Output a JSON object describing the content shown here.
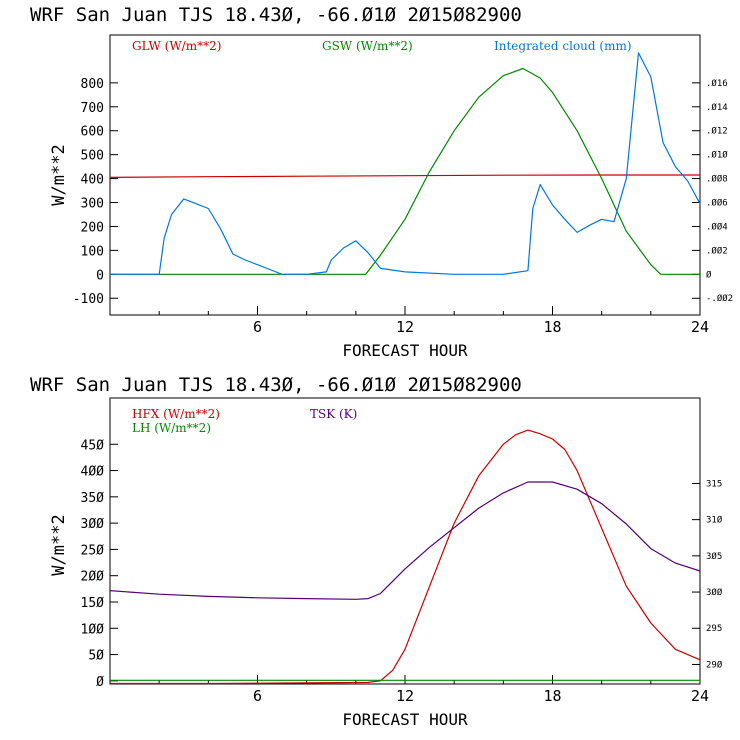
{
  "chart_data": [
    {
      "type": "line",
      "title": "WRF  San Juan TJS  18.43Ø, -66.Ø1Ø  2Ø15Ø82900",
      "xlabel": "FORECAST HOUR",
      "ylabel": "W/m**2",
      "xlim": [
        0,
        24
      ],
      "ylim": [
        -170,
        1000
      ],
      "xticks": [
        {
          "v": 6,
          "label": "6"
        },
        {
          "v": 12,
          "label": "12"
        },
        {
          "v": 18,
          "label": "18"
        },
        {
          "v": 24,
          "label": "24"
        }
      ],
      "yticks": [
        {
          "v": -100,
          "label": "-100"
        },
        {
          "v": 0,
          "label": "0"
        },
        {
          "v": 100,
          "label": "100"
        },
        {
          "v": 200,
          "label": "200"
        },
        {
          "v": 300,
          "label": "300"
        },
        {
          "v": 400,
          "label": "400"
        },
        {
          "v": 500,
          "label": "500"
        },
        {
          "v": 600,
          "label": "600"
        },
        {
          "v": 700,
          "label": "700"
        },
        {
          "v": 800,
          "label": "800"
        }
      ],
      "y2lim": [
        -0.0034,
        0.02
      ],
      "y2ticks": [
        {
          "v": -0.002,
          "label": "-.ØØ2"
        },
        {
          "v": 0,
          "label": "Ø"
        },
        {
          "v": 0.002,
          "label": ".ØØ2"
        },
        {
          "v": 0.004,
          "label": ".ØØ4"
        },
        {
          "v": 0.006,
          "label": ".ØØ6"
        },
        {
          "v": 0.008,
          "label": ".ØØ8"
        },
        {
          "v": 0.01,
          "label": ".Ø1Ø"
        },
        {
          "v": 0.012,
          "label": ".Ø12"
        },
        {
          "v": 0.014,
          "label": ".Ø14"
        },
        {
          "v": 0.016,
          "label": ".Ø16"
        }
      ],
      "series": [
        {
          "name": "GLW (W/m**2)",
          "color": "#cc0000",
          "axis": "left",
          "x": [
            0,
            4,
            8,
            12,
            16,
            20,
            24
          ],
          "y": [
            405,
            408,
            410,
            412,
            414,
            415,
            415
          ]
        },
        {
          "name": "GSW (W/m**2)",
          "color": "#008800",
          "axis": "left",
          "x": [
            0,
            10.4,
            11,
            12,
            13,
            14,
            15,
            16,
            16.8,
            17.5,
            18,
            19,
            20,
            21,
            22,
            22.4,
            24
          ],
          "y": [
            0,
            0,
            80,
            230,
            430,
            600,
            740,
            830,
            860,
            820,
            760,
            600,
            400,
            180,
            40,
            0,
            0
          ]
        },
        {
          "name": "Integrated cloud (mm)",
          "color": "#0077dd",
          "axis": "right",
          "x": [
            0,
            2,
            2.2,
            2.5,
            3,
            3.5,
            4,
            4.5,
            5,
            5.5,
            6,
            6.5,
            7,
            8,
            8.8,
            9,
            9.5,
            10,
            10.5,
            11,
            12,
            14,
            16,
            17.0,
            17.2,
            17.5,
            18,
            18.5,
            19,
            19.5,
            20,
            20.5,
            21,
            21.5,
            22,
            22.5,
            23,
            23.5,
            24
          ],
          "y": [
            0,
            0,
            0.003,
            0.005,
            0.0063,
            0.0059,
            0.0055,
            0.0038,
            0.0017,
            0.0012,
            0.0008,
            0.0004,
            0,
            0,
            0.0002,
            0.0012,
            0.0022,
            0.0028,
            0.0018,
            0.0005,
            0.0002,
            0,
            0,
            0.0003,
            0.0055,
            0.0075,
            0.0058,
            0.0046,
            0.0035,
            0.0041,
            0.0046,
            0.0044,
            0.008,
            0.0185,
            0.0165,
            0.011,
            0.009,
            0.0078,
            0.0059
          ]
        }
      ]
    },
    {
      "type": "line",
      "title": "WRF  San Juan TJS  18.43Ø, -66.Ø1Ø  2Ø15Ø82900",
      "xlabel": "FORECAST HOUR",
      "ylabel": "W/m**2",
      "xlim": [
        0,
        24
      ],
      "ylim": [
        -6,
        538
      ],
      "xticks": [
        {
          "v": 6,
          "label": "6"
        },
        {
          "v": 12,
          "label": "12"
        },
        {
          "v": 18,
          "label": "18"
        },
        {
          "v": 24,
          "label": "24"
        }
      ],
      "yticks": [
        {
          "v": 0,
          "label": "Ø"
        },
        {
          "v": 50,
          "label": "5Ø"
        },
        {
          "v": 100,
          "label": "1ØØ"
        },
        {
          "v": 150,
          "label": "15Ø"
        },
        {
          "v": 200,
          "label": "2ØØ"
        },
        {
          "v": 250,
          "label": "25Ø"
        },
        {
          "v": 300,
          "label": "3ØØ"
        },
        {
          "v": 350,
          "label": "35Ø"
        },
        {
          "v": 400,
          "label": "4ØØ"
        },
        {
          "v": 450,
          "label": "45Ø"
        }
      ],
      "y2lim": [
        287.3,
        326.8
      ],
      "y2ticks": [
        {
          "v": 290,
          "label": "29Ø"
        },
        {
          "v": 295,
          "label": "295"
        },
        {
          "v": 300,
          "label": "3ØØ"
        },
        {
          "v": 305,
          "label": "3Ø5"
        },
        {
          "v": 310,
          "label": "31Ø"
        },
        {
          "v": 315,
          "label": "315"
        }
      ],
      "series": [
        {
          "name": "HFX (W/m**2)",
          "color": "#cc0000",
          "axis": "left",
          "x": [
            0,
            4,
            8,
            10.5,
            11,
            11.5,
            12,
            13,
            14,
            15,
            16,
            16.5,
            17,
            17.5,
            18,
            18.5,
            19,
            20,
            21,
            22,
            23,
            24
          ],
          "y": [
            -5,
            -5,
            -4,
            -3,
            0,
            20,
            60,
            180,
            300,
            390,
            450,
            468,
            477,
            470,
            460,
            440,
            400,
            290,
            180,
            110,
            60,
            40
          ]
        },
        {
          "name": "LH (W/m**2)",
          "color": "#008800",
          "axis": "left",
          "x": [
            0,
            24
          ],
          "y": [
            1,
            1
          ]
        },
        {
          "name": "TSK (K)",
          "color": "#550077",
          "axis": "right",
          "x": [
            0,
            2,
            4,
            6,
            8,
            10,
            10.5,
            11,
            12,
            13,
            14,
            15,
            16,
            17,
            18,
            19,
            20,
            21,
            22,
            23,
            24
          ],
          "y": [
            300.2,
            299.7,
            299.4,
            299.2,
            299.1,
            299.0,
            299.1,
            299.8,
            303.2,
            306.2,
            308.9,
            311.6,
            313.7,
            315.2,
            315.2,
            314.2,
            312.2,
            309.4,
            306.0,
            304.0,
            302.9
          ]
        }
      ]
    }
  ]
}
